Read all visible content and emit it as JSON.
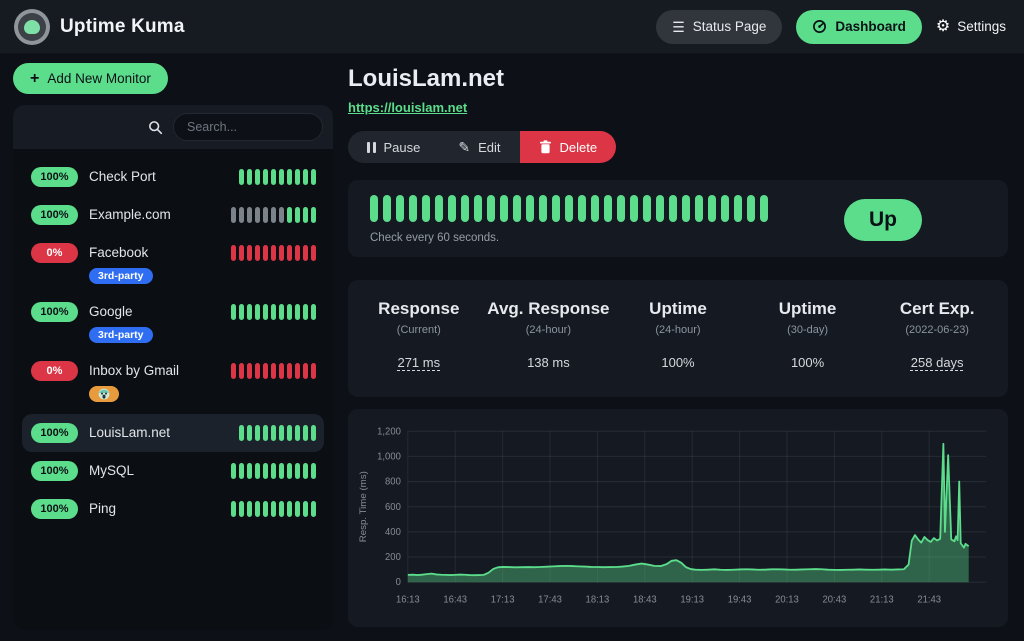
{
  "colors": {
    "accent": "#5cdd8b",
    "danger": "#dc3545",
    "beat_empty": "#7b828a",
    "tag_blue": "#2f6ef2",
    "tag_orange": "#e89b3c"
  },
  "icons": {
    "menu": "☰",
    "gear": "⚙",
    "plus": "+",
    "edit": "✎"
  },
  "navbar": {
    "app_name": "Uptime Kuma",
    "status_page_label": "Status Page",
    "dashboard_label": "Dashboard",
    "settings_label": "Settings"
  },
  "sidebar": {
    "add_monitor_label": "Add New Monitor",
    "search_placeholder": "Search...",
    "monitors": [
      {
        "name": "Check Port",
        "uptime": "100%",
        "status": "up",
        "selected": false,
        "tags": [],
        "beats": [
          "up",
          "up",
          "up",
          "up",
          "up",
          "up",
          "up",
          "up",
          "up",
          "up"
        ]
      },
      {
        "name": "Example.com",
        "uptime": "100%",
        "status": "up",
        "selected": false,
        "tags": [],
        "beats": [
          "empty",
          "empty",
          "empty",
          "empty",
          "empty",
          "empty",
          "empty",
          "up",
          "up",
          "up",
          "up"
        ]
      },
      {
        "name": "Facebook",
        "uptime": "0%",
        "status": "down",
        "selected": false,
        "tags": [
          {
            "label": "3rd-party",
            "color": "#2f6ef2",
            "type": "text"
          }
        ],
        "beats": [
          "down",
          "down",
          "down",
          "down",
          "down",
          "down",
          "down",
          "down",
          "down",
          "down",
          "down"
        ]
      },
      {
        "name": "Google",
        "uptime": "100%",
        "status": "up",
        "selected": false,
        "tags": [
          {
            "label": "3rd-party",
            "color": "#2f6ef2",
            "type": "text"
          }
        ],
        "beats": [
          "up",
          "up",
          "up",
          "up",
          "up",
          "up",
          "up",
          "up",
          "up",
          "up",
          "up"
        ]
      },
      {
        "name": "Inbox by Gmail",
        "uptime": "0%",
        "status": "down",
        "selected": false,
        "tags": [
          {
            "label": "😱",
            "color": "#e89b3c",
            "type": "emoji"
          }
        ],
        "beats": [
          "down",
          "down",
          "down",
          "down",
          "down",
          "down",
          "down",
          "down",
          "down",
          "down",
          "down"
        ]
      },
      {
        "name": "LouisLam.net",
        "uptime": "100%",
        "status": "up",
        "selected": true,
        "tags": [],
        "beats": [
          "up",
          "up",
          "up",
          "up",
          "up",
          "up",
          "up",
          "up",
          "up",
          "up"
        ]
      },
      {
        "name": "MySQL",
        "uptime": "100%",
        "status": "up",
        "selected": false,
        "tags": [],
        "beats": [
          "up",
          "up",
          "up",
          "up",
          "up",
          "up",
          "up",
          "up",
          "up",
          "up",
          "up"
        ]
      },
      {
        "name": "Ping",
        "uptime": "100%",
        "status": "up",
        "selected": false,
        "tags": [],
        "beats": [
          "up",
          "up",
          "up",
          "up",
          "up",
          "up",
          "up",
          "up",
          "up",
          "up",
          "up"
        ]
      }
    ]
  },
  "main": {
    "title": "LouisLam.net",
    "url": "https://louislam.net",
    "actions": {
      "pause": "Pause",
      "edit": "Edit",
      "delete": "Delete"
    },
    "heartbeat": {
      "beat_count": 31,
      "beat_status": "up",
      "check_text": "Check every 60 seconds.",
      "status_label": "Up"
    },
    "stats": [
      {
        "title": "Response",
        "subtitle": "(Current)",
        "value": "271 ms",
        "underline": true
      },
      {
        "title": "Avg. Response",
        "subtitle": "(24-hour)",
        "value": "138 ms",
        "underline": false
      },
      {
        "title": "Uptime",
        "subtitle": "(24-hour)",
        "value": "100%",
        "underline": false
      },
      {
        "title": "Uptime",
        "subtitle": "(30-day)",
        "value": "100%",
        "underline": false
      },
      {
        "title": "Cert Exp.",
        "subtitle": "(2022-06-23)",
        "value": "258 days",
        "underline": true
      }
    ]
  },
  "chart_data": {
    "type": "area",
    "title": "",
    "xlabel": "",
    "ylabel": "Resp. Time (ms)",
    "ylim": [
      0,
      1200
    ],
    "yticks": [
      0,
      200,
      400,
      600,
      800,
      1000,
      1200
    ],
    "ytick_labels": [
      "0",
      "200",
      "400",
      "600",
      "800",
      "1,000",
      "1,200"
    ],
    "xticks": [
      "16:13",
      "16:43",
      "17:13",
      "17:43",
      "18:13",
      "18:43",
      "19:13",
      "19:43",
      "20:13",
      "20:43",
      "21:13",
      "21:43"
    ],
    "x_start": "16:13",
    "x_domain_minutes": 366,
    "grid": true,
    "legend": "none",
    "line_color": "#5cdd8b",
    "fill_color": "rgba(92,221,139,0.38)",
    "points": [
      [
        "16:13",
        58
      ],
      [
        "16:16",
        60
      ],
      [
        "16:19",
        57
      ],
      [
        "16:22",
        60
      ],
      [
        "16:25",
        64
      ],
      [
        "16:28",
        68
      ],
      [
        "16:31",
        62
      ],
      [
        "16:34",
        59
      ],
      [
        "16:37",
        58
      ],
      [
        "16:40",
        57
      ],
      [
        "16:43",
        58
      ],
      [
        "16:46",
        61
      ],
      [
        "16:49",
        59
      ],
      [
        "16:52",
        57
      ],
      [
        "16:55",
        56
      ],
      [
        "16:58",
        57
      ],
      [
        "17:01",
        58
      ],
      [
        "17:04",
        75
      ],
      [
        "17:07",
        105
      ],
      [
        "17:10",
        118
      ],
      [
        "17:13",
        122
      ],
      [
        "17:17",
        120
      ],
      [
        "17:21",
        118
      ],
      [
        "17:25",
        119
      ],
      [
        "17:29",
        120
      ],
      [
        "17:33",
        119
      ],
      [
        "17:37",
        121
      ],
      [
        "17:41",
        123
      ],
      [
        "17:45",
        126
      ],
      [
        "17:49",
        128
      ],
      [
        "17:53",
        130
      ],
      [
        "17:57",
        128
      ],
      [
        "18:01",
        126
      ],
      [
        "18:05",
        124
      ],
      [
        "18:09",
        122
      ],
      [
        "18:13",
        121
      ],
      [
        "18:17",
        119
      ],
      [
        "18:21",
        120
      ],
      [
        "18:25",
        121
      ],
      [
        "18:29",
        124
      ],
      [
        "18:33",
        130
      ],
      [
        "18:37",
        140
      ],
      [
        "18:41",
        148
      ],
      [
        "18:45",
        140
      ],
      [
        "18:49",
        130
      ],
      [
        "18:53",
        128
      ],
      [
        "18:57",
        145
      ],
      [
        "19:00",
        170
      ],
      [
        "19:03",
        175
      ],
      [
        "19:06",
        155
      ],
      [
        "19:09",
        120
      ],
      [
        "19:12",
        105
      ],
      [
        "19:15",
        100
      ],
      [
        "19:19",
        98
      ],
      [
        "19:23",
        100
      ],
      [
        "19:27",
        102
      ],
      [
        "19:31",
        99
      ],
      [
        "19:35",
        97
      ],
      [
        "19:39",
        99
      ],
      [
        "19:43",
        101
      ],
      [
        "19:47",
        103
      ],
      [
        "19:51",
        101
      ],
      [
        "19:55",
        99
      ],
      [
        "19:59",
        100
      ],
      [
        "20:03",
        102
      ],
      [
        "20:07",
        103
      ],
      [
        "20:11",
        101
      ],
      [
        "20:15",
        99
      ],
      [
        "20:19",
        100
      ],
      [
        "20:23",
        101
      ],
      [
        "20:27",
        103
      ],
      [
        "20:31",
        105
      ],
      [
        "20:35",
        103
      ],
      [
        "20:39",
        100
      ],
      [
        "20:43",
        98
      ],
      [
        "20:47",
        97
      ],
      [
        "20:51",
        99
      ],
      [
        "20:55",
        100
      ],
      [
        "20:59",
        101
      ],
      [
        "21:03",
        100
      ],
      [
        "21:07",
        99
      ],
      [
        "21:11",
        100
      ],
      [
        "21:15",
        101
      ],
      [
        "21:19",
        100
      ],
      [
        "21:23",
        101
      ],
      [
        "21:27",
        103
      ],
      [
        "21:30",
        140
      ],
      [
        "21:32",
        330
      ],
      [
        "21:34",
        375
      ],
      [
        "21:36",
        340
      ],
      [
        "21:38",
        315
      ],
      [
        "21:40",
        360
      ],
      [
        "21:42",
        335
      ],
      [
        "21:44",
        320
      ],
      [
        "21:46",
        350
      ],
      [
        "21:48",
        332
      ],
      [
        "21:50",
        345
      ],
      [
        "21:52",
        1100
      ],
      [
        "21:53",
        400
      ],
      [
        "21:55",
        1010
      ],
      [
        "21:57",
        340
      ],
      [
        "21:59",
        325
      ],
      [
        "22:00",
        365
      ],
      [
        "22:01",
        335
      ],
      [
        "22:02",
        800
      ],
      [
        "22:03",
        310
      ],
      [
        "22:05",
        275
      ],
      [
        "22:06",
        305
      ],
      [
        "22:08",
        285
      ]
    ]
  }
}
